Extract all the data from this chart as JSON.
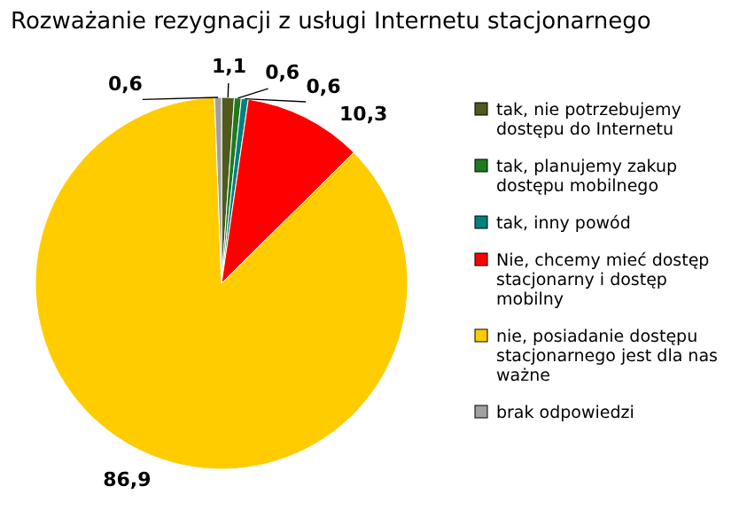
{
  "chart_data": {
    "type": "pie",
    "title": "Rozważanie rezygnacji z usługi Internetu stacjonarnego",
    "categories": [
      "tak, nie potrzebujemy dostępu do Internetu",
      "tak, planujemy zakup dostępu mobilnego",
      "tak, inny powód",
      "Nie, chcemy mieć dostęp stacjonarny i dostęp mobilny",
      "nie, posiadanie dostępu stacjonarnego jest dla nas ważne",
      "brak odpowiedzi"
    ],
    "values": [
      1.1,
      0.6,
      0.6,
      10.3,
      86.9,
      0.6
    ],
    "value_labels": [
      "1,1",
      "0,6",
      "0,6",
      "10,3",
      "86,9",
      "0,6"
    ],
    "colors": [
      "#4f5a1c",
      "#1f7a1f",
      "#008080",
      "#ff0000",
      "#ffcc00",
      "#a0a0a0"
    ],
    "legend": "right"
  }
}
